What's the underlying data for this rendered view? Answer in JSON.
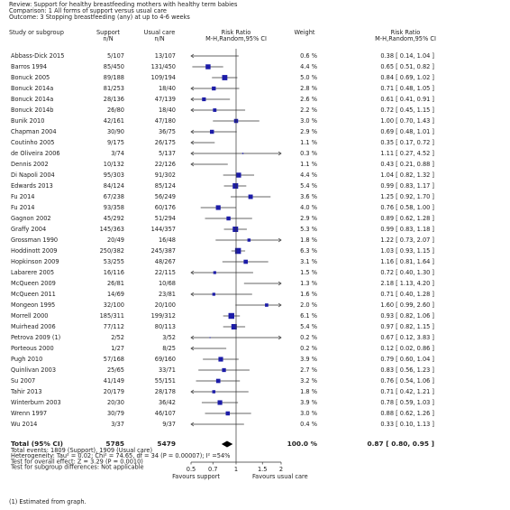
{
  "header": {
    "review": "Review:   Support for healthy breastfeeding mothers with healthy term babies",
    "comparison": "Comparison:   1 All forms of support versus usual care",
    "outcome": "Outcome:   3 Stopping breastfeeding (any) at up to 4-6 weeks"
  },
  "columns": {
    "study": "Study or subgroup",
    "support": [
      "Support",
      "n/N"
    ],
    "usual": [
      "Usual care",
      "n/N"
    ],
    "plot": [
      "Risk Ratio",
      "M-H,Random,95% CI"
    ],
    "weight": "Weight",
    "ratio": [
      "Risk Ratio",
      "M-H,Random,95% CI"
    ]
  },
  "chart_data": {
    "type": "forest",
    "x_log": true,
    "color": "#1c1ca8",
    "studies": [
      "Abbass-Dick 2015",
      "Barros 1994",
      "Bonuck 2005",
      "Bonuck 2014a",
      "Bonuck 2014a",
      "Bonuck 2014b",
      "Bunik 2010",
      "Chapman 2004",
      "Coutinho 2005",
      "de Oliveira 2006",
      "Dennis 2002",
      "Di Napoli 2004",
      "Edwards 2013",
      "Fu 2014",
      "Fu 2014",
      "Gagnon 2002",
      "Graffy 2004",
      "Grossman 1990",
      "Hoddinott 2009",
      "Hopkinson 2009",
      "Labarere 2005",
      "McQueen 2009",
      "McQueen 2011",
      "Mongeon 1995",
      "Morrell 2000",
      "Muirhead 2006",
      "Petrova 2009 (1)",
      "Porteous 2000",
      "Pugh 2010",
      "Quinlivan 2003",
      "Su 2007",
      "Tahir 2013",
      "Winterburn 2003",
      "Wrenn 1997",
      "Wu 2014"
    ],
    "support": [
      "5/107",
      "85/450",
      "89/188",
      "81/253",
      "28/136",
      "26/80",
      "42/161",
      "30/90",
      "9/175",
      "3/74",
      "10/132",
      "95/303",
      "84/124",
      "67/238",
      "93/358",
      "45/292",
      "145/363",
      "20/49",
      "250/382",
      "53/255",
      "16/116",
      "26/81",
      "14/69",
      "32/100",
      "185/311",
      "77/112",
      "2/52",
      "1/27",
      "57/168",
      "25/65",
      "41/149",
      "20/179",
      "20/30",
      "30/79",
      "3/37"
    ],
    "usual": [
      "13/107",
      "131/450",
      "109/194",
      "18/40",
      "47/139",
      "18/40",
      "47/180",
      "36/75",
      "26/175",
      "5/137",
      "22/126",
      "91/302",
      "85/124",
      "56/249",
      "60/176",
      "51/294",
      "144/357",
      "16/48",
      "245/387",
      "48/267",
      "22/115",
      "10/68",
      "23/81",
      "20/100",
      "199/312",
      "80/113",
      "3/52",
      "8/25",
      "69/160",
      "33/71",
      "55/151",
      "28/178",
      "36/42",
      "46/107",
      "9/37"
    ],
    "weights": [
      0.6,
      4.4,
      5.0,
      2.8,
      2.6,
      2.2,
      3.0,
      2.9,
      1.1,
      0.3,
      1.1,
      4.4,
      5.4,
      3.6,
      4.0,
      2.9,
      5.3,
      1.8,
      6.3,
      3.1,
      1.5,
      1.3,
      1.6,
      2.0,
      6.1,
      5.4,
      0.2,
      0.2,
      3.9,
      2.7,
      3.2,
      1.8,
      3.9,
      3.0,
      0.4
    ],
    "weight_labels": [
      "0.6 %",
      "4.4 %",
      "5.0 %",
      "2.8 %",
      "2.6 %",
      "2.2 %",
      "3.0 %",
      "2.9 %",
      "1.1 %",
      "0.3 %",
      "1.1 %",
      "4.4 %",
      "5.4 %",
      "3.6 %",
      "4.0 %",
      "2.9 %",
      "5.3 %",
      "1.8 %",
      "6.3 %",
      "3.1 %",
      "1.5 %",
      "1.3 %",
      "1.6 %",
      "2.0 %",
      "6.1 %",
      "5.4 %",
      "0.2 %",
      "0.2 %",
      "3.9 %",
      "2.7 %",
      "3.2 %",
      "1.8 %",
      "3.9 %",
      "3.0 %",
      "0.4 %"
    ],
    "values": [
      0.38,
      0.65,
      0.84,
      0.71,
      0.61,
      0.72,
      1.0,
      0.69,
      0.35,
      1.11,
      0.43,
      1.04,
      0.99,
      1.25,
      0.76,
      0.89,
      0.99,
      1.22,
      1.03,
      1.16,
      0.72,
      2.18,
      0.71,
      1.6,
      0.93,
      0.97,
      0.67,
      0.12,
      0.79,
      0.83,
      0.76,
      0.71,
      0.78,
      0.88,
      0.33
    ],
    "lo": [
      0.14,
      0.51,
      0.69,
      0.48,
      0.41,
      0.45,
      0.7,
      0.48,
      0.17,
      0.27,
      0.21,
      0.82,
      0.83,
      0.92,
      0.58,
      0.62,
      0.83,
      0.73,
      0.93,
      0.81,
      0.4,
      1.13,
      0.4,
      0.99,
      0.82,
      0.82,
      0.12,
      0.02,
      0.6,
      0.56,
      0.54,
      0.42,
      0.59,
      0.62,
      0.1
    ],
    "hi": [
      1.04,
      0.82,
      1.02,
      1.05,
      0.91,
      1.15,
      1.43,
      1.01,
      0.72,
      4.52,
      0.88,
      1.32,
      1.17,
      1.7,
      1.0,
      1.28,
      1.18,
      2.07,
      1.15,
      1.64,
      1.3,
      4.2,
      1.28,
      2.6,
      1.06,
      1.15,
      3.83,
      0.86,
      1.04,
      1.23,
      1.06,
      1.21,
      1.03,
      1.26,
      1.13
    ],
    "value_labels": [
      "0.38 [ 0.14, 1.04 ]",
      "0.65 [ 0.51, 0.82 ]",
      "0.84 [ 0.69, 1.02 ]",
      "0.71 [ 0.48, 1.05 ]",
      "0.61 [ 0.41, 0.91 ]",
      "0.72 [ 0.45, 1.15 ]",
      "1.00 [ 0.70, 1.43 ]",
      "0.69 [ 0.48, 1.01 ]",
      "0.35 [ 0.17, 0.72 ]",
      "1.11 [ 0.27, 4.52 ]",
      "0.43 [ 0.21, 0.88 ]",
      "1.04 [ 0.82, 1.32 ]",
      "0.99 [ 0.83, 1.17 ]",
      "1.25 [ 0.92, 1.70 ]",
      "0.76 [ 0.58, 1.00 ]",
      "0.89 [ 0.62, 1.28 ]",
      "0.99 [ 0.83, 1.18 ]",
      "1.22 [ 0.73, 2.07 ]",
      "1.03 [ 0.93, 1.15 ]",
      "1.16 [ 0.81, 1.64 ]",
      "0.72 [ 0.40, 1.30 ]",
      "2.18 [ 1.13, 4.20 ]",
      "0.71 [ 0.40, 1.28 ]",
      "1.60 [ 0.99, 2.60 ]",
      "0.93 [ 0.82, 1.06 ]",
      "0.97 [ 0.82, 1.15 ]",
      "0.67 [ 0.12, 3.83 ]",
      "0.12 [ 0.02, 0.86 ]",
      "0.79 [ 0.60, 1.04 ]",
      "0.83 [ 0.56, 1.23 ]",
      "0.76 [ 0.54, 1.06 ]",
      "0.71 [ 0.42, 1.21 ]",
      "0.78 [ 0.59, 1.03 ]",
      "0.88 [ 0.62, 1.26 ]",
      "0.33 [ 0.10, 1.13 ]"
    ],
    "total": {
      "label": "Total (95% CI)",
      "support": 5785,
      "usual": 5479,
      "weight_label": "100.0 %",
      "value": 0.87,
      "lo": 0.8,
      "hi": 0.95,
      "value_label": "0.87 [ 0.80, 0.95 ]"
    },
    "notes": [
      "Total events: 1809 (Support), 1909 (Usual care)",
      "Heterogeneity: Tau² = 0.02; Chi² = 74.65, df = 34 (P = 0.00007); I² =54%",
      "Test for overall effect: Z = 3.29 (P = 0.0010)",
      "Test for subgroup differences: Not applicable"
    ],
    "xlim": [
      0.5,
      2
    ],
    "xticks": [
      0.5,
      0.7,
      1,
      1.5,
      2
    ],
    "favours_left": "Favours support",
    "favours_right": "Favours usual care"
  },
  "footnote": "(1) Estimated from graph."
}
